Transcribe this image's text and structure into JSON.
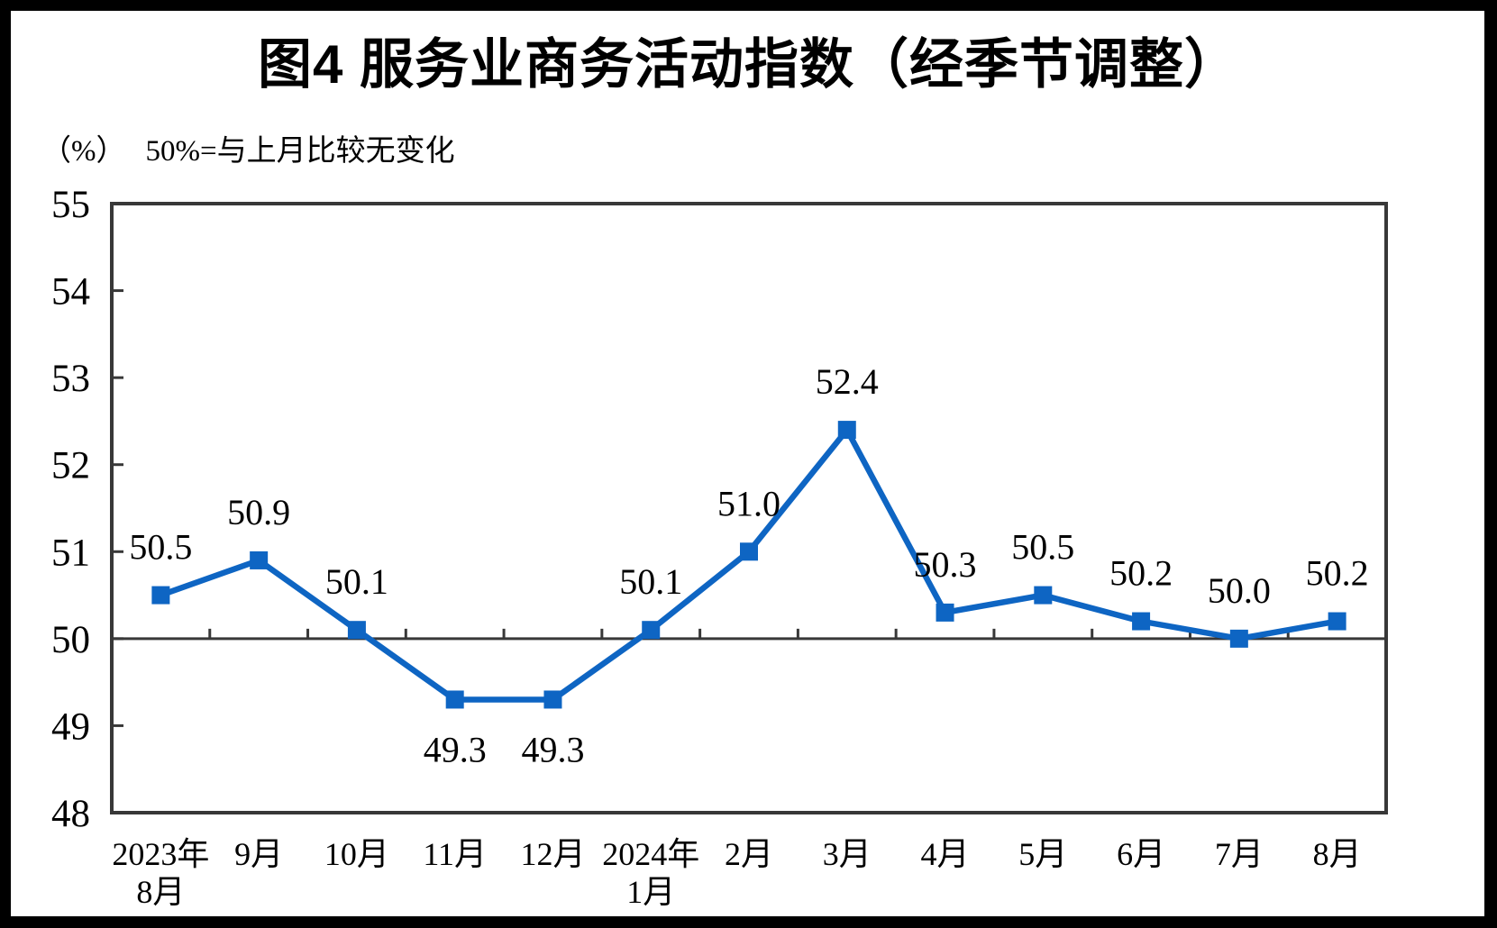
{
  "title": "图4 服务业商务活动指数（经季节调整）",
  "unit_label": "（%）",
  "note": "50%=与上月比较无变化",
  "colors": {
    "line": "#0E65C3",
    "axis": "#383838",
    "reference_line": "#383838",
    "text": "#000000",
    "frame": "#000000",
    "background": "#FFFFFF"
  },
  "chart_data": {
    "type": "line",
    "title": "图4 服务业商务活动指数（经季节调整）",
    "ylabel_unit": "（%）",
    "annotation": "50%=与上月比较无变化",
    "categories": [
      [
        "2023年",
        "8月"
      ],
      "9月",
      "10月",
      "11月",
      "12月",
      [
        "2024年",
        "1月"
      ],
      "2月",
      "3月",
      "4月",
      "5月",
      "6月",
      "7月",
      "8月"
    ],
    "series": [
      {
        "name": "服务业商务活动指数",
        "values": [
          50.5,
          50.9,
          50.1,
          49.3,
          49.3,
          50.1,
          51.0,
          52.4,
          50.3,
          50.5,
          50.2,
          50.0,
          50.2
        ],
        "marker": "square"
      }
    ],
    "value_labels": [
      "50.5",
      "50.9",
      "50.1",
      "49.3",
      "49.3",
      "50.1",
      "51.0",
      "52.4",
      "50.3",
      "50.5",
      "50.2",
      "50.0",
      "50.2"
    ],
    "labels_below_indices": [
      3,
      4
    ],
    "ylim": [
      48,
      55
    ],
    "yticks": [
      48,
      49,
      50,
      51,
      52,
      53,
      54,
      55
    ],
    "reference_line": 50,
    "grid": false,
    "legend": false
  }
}
